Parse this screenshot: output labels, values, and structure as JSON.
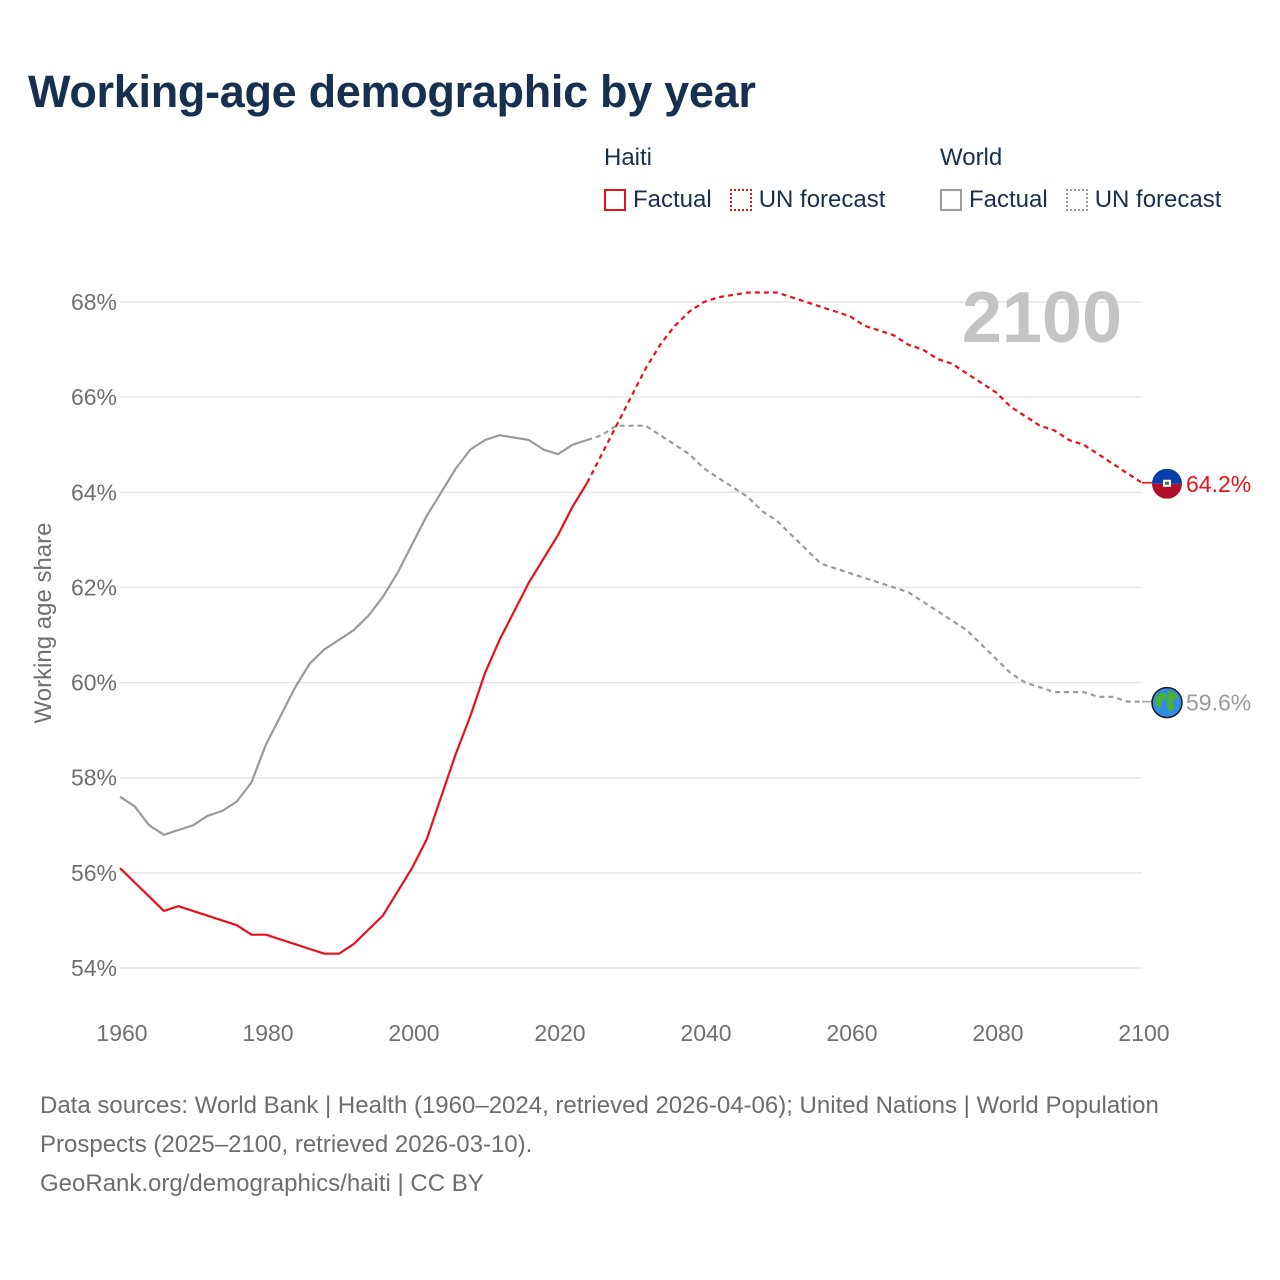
{
  "title": "Working-age demographic by year",
  "legend": {
    "groups": [
      {
        "name": "Haiti",
        "items": [
          "Factual",
          "UN forecast"
        ]
      },
      {
        "name": "World",
        "items": [
          "Factual",
          "UN forecast"
        ]
      }
    ]
  },
  "colors": {
    "haiti": "#e8101a",
    "world": "#9a9a9a",
    "grid": "#e6e6e6",
    "year_label": "#c4c4c4"
  },
  "icons": {
    "haiti_end": "haiti-flag-icon",
    "world_end": "globe-icon"
  },
  "chart_data": {
    "type": "line",
    "title": "Working-age demographic by year",
    "xlabel": "",
    "ylabel": "Working age share",
    "xlim": [
      1960,
      2100
    ],
    "ylim": [
      53.5,
      68.5
    ],
    "x_ticks": [
      "1960",
      "1980",
      "2000",
      "2020",
      "2040",
      "2060",
      "2080",
      "2100"
    ],
    "y_ticks": [
      "54%",
      "56%",
      "58%",
      "60%",
      "62%",
      "64%",
      "66%",
      "68%"
    ],
    "year_label": "2100",
    "series": [
      {
        "name": "Haiti",
        "factual_range": "1960–2024",
        "forecast_range": "2025–2100",
        "end_label": "64.2%",
        "factual": [
          [
            1960,
            56.1
          ],
          [
            1962,
            55.8
          ],
          [
            1964,
            55.5
          ],
          [
            1966,
            55.2
          ],
          [
            1968,
            55.3
          ],
          [
            1970,
            55.2
          ],
          [
            1972,
            55.1
          ],
          [
            1974,
            55.0
          ],
          [
            1976,
            54.9
          ],
          [
            1978,
            54.7
          ],
          [
            1980,
            54.7
          ],
          [
            1982,
            54.6
          ],
          [
            1984,
            54.5
          ],
          [
            1986,
            54.4
          ],
          [
            1988,
            54.3
          ],
          [
            1990,
            54.3
          ],
          [
            1992,
            54.5
          ],
          [
            1994,
            54.8
          ],
          [
            1996,
            55.1
          ],
          [
            1998,
            55.6
          ],
          [
            2000,
            56.1
          ],
          [
            2002,
            56.7
          ],
          [
            2004,
            57.6
          ],
          [
            2006,
            58.5
          ],
          [
            2008,
            59.3
          ],
          [
            2010,
            60.2
          ],
          [
            2012,
            60.9
          ],
          [
            2014,
            61.5
          ],
          [
            2016,
            62.1
          ],
          [
            2018,
            62.6
          ],
          [
            2020,
            63.1
          ],
          [
            2022,
            63.7
          ],
          [
            2024,
            64.2
          ]
        ],
        "forecast": [
          [
            2024,
            64.2
          ],
          [
            2026,
            64.8
          ],
          [
            2028,
            65.4
          ],
          [
            2030,
            66.0
          ],
          [
            2032,
            66.6
          ],
          [
            2034,
            67.1
          ],
          [
            2036,
            67.5
          ],
          [
            2038,
            67.8
          ],
          [
            2040,
            68.0
          ],
          [
            2042,
            68.1
          ],
          [
            2044,
            68.15
          ],
          [
            2046,
            68.2
          ],
          [
            2048,
            68.2
          ],
          [
            2050,
            68.2
          ],
          [
            2052,
            68.1
          ],
          [
            2054,
            68.0
          ],
          [
            2056,
            67.9
          ],
          [
            2058,
            67.8
          ],
          [
            2060,
            67.7
          ],
          [
            2062,
            67.5
          ],
          [
            2064,
            67.4
          ],
          [
            2066,
            67.3
          ],
          [
            2068,
            67.1
          ],
          [
            2070,
            67.0
          ],
          [
            2072,
            66.8
          ],
          [
            2074,
            66.7
          ],
          [
            2076,
            66.5
          ],
          [
            2078,
            66.3
          ],
          [
            2080,
            66.1
          ],
          [
            2082,
            65.8
          ],
          [
            2084,
            65.6
          ],
          [
            2086,
            65.4
          ],
          [
            2088,
            65.3
          ],
          [
            2090,
            65.1
          ],
          [
            2092,
            65.0
          ],
          [
            2094,
            64.8
          ],
          [
            2096,
            64.6
          ],
          [
            2098,
            64.4
          ],
          [
            2100,
            64.2
          ]
        ]
      },
      {
        "name": "World",
        "factual_range": "1960–2024",
        "forecast_range": "2025–2100",
        "end_label": "59.6%",
        "factual": [
          [
            1960,
            57.6
          ],
          [
            1962,
            57.4
          ],
          [
            1964,
            57.0
          ],
          [
            1966,
            56.8
          ],
          [
            1968,
            56.9
          ],
          [
            1970,
            57.0
          ],
          [
            1972,
            57.2
          ],
          [
            1974,
            57.3
          ],
          [
            1976,
            57.5
          ],
          [
            1978,
            57.9
          ],
          [
            1980,
            58.7
          ],
          [
            1982,
            59.3
          ],
          [
            1984,
            59.9
          ],
          [
            1986,
            60.4
          ],
          [
            1988,
            60.7
          ],
          [
            1990,
            60.9
          ],
          [
            1992,
            61.1
          ],
          [
            1994,
            61.4
          ],
          [
            1996,
            61.8
          ],
          [
            1998,
            62.3
          ],
          [
            2000,
            62.9
          ],
          [
            2002,
            63.5
          ],
          [
            2004,
            64.0
          ],
          [
            2006,
            64.5
          ],
          [
            2008,
            64.9
          ],
          [
            2010,
            65.1
          ],
          [
            2012,
            65.2
          ],
          [
            2014,
            65.15
          ],
          [
            2016,
            65.1
          ],
          [
            2018,
            64.9
          ],
          [
            2020,
            64.8
          ],
          [
            2022,
            65.0
          ],
          [
            2024,
            65.1
          ]
        ],
        "forecast": [
          [
            2024,
            65.1
          ],
          [
            2026,
            65.2
          ],
          [
            2028,
            65.4
          ],
          [
            2030,
            65.4
          ],
          [
            2032,
            65.4
          ],
          [
            2034,
            65.2
          ],
          [
            2036,
            65.0
          ],
          [
            2038,
            64.8
          ],
          [
            2040,
            64.5
          ],
          [
            2042,
            64.3
          ],
          [
            2044,
            64.1
          ],
          [
            2046,
            63.9
          ],
          [
            2048,
            63.6
          ],
          [
            2050,
            63.4
          ],
          [
            2052,
            63.1
          ],
          [
            2054,
            62.8
          ],
          [
            2056,
            62.5
          ],
          [
            2058,
            62.4
          ],
          [
            2060,
            62.3
          ],
          [
            2062,
            62.2
          ],
          [
            2064,
            62.1
          ],
          [
            2066,
            62.0
          ],
          [
            2068,
            61.9
          ],
          [
            2070,
            61.7
          ],
          [
            2072,
            61.5
          ],
          [
            2074,
            61.3
          ],
          [
            2076,
            61.1
          ],
          [
            2078,
            60.8
          ],
          [
            2080,
            60.5
          ],
          [
            2082,
            60.2
          ],
          [
            2084,
            60.0
          ],
          [
            2086,
            59.9
          ],
          [
            2088,
            59.8
          ],
          [
            2090,
            59.8
          ],
          [
            2092,
            59.8
          ],
          [
            2094,
            59.7
          ],
          [
            2096,
            59.7
          ],
          [
            2098,
            59.6
          ],
          [
            2100,
            59.6
          ]
        ]
      }
    ]
  },
  "footer": {
    "line1": "Data sources: World Bank | Health (1960–2024, retrieved 2026-04-06); United Nations | World Population Prospects (2025–2100, retrieved 2026-03-10).",
    "line2": "GeoRank.org/demographics/haiti | CC BY"
  }
}
